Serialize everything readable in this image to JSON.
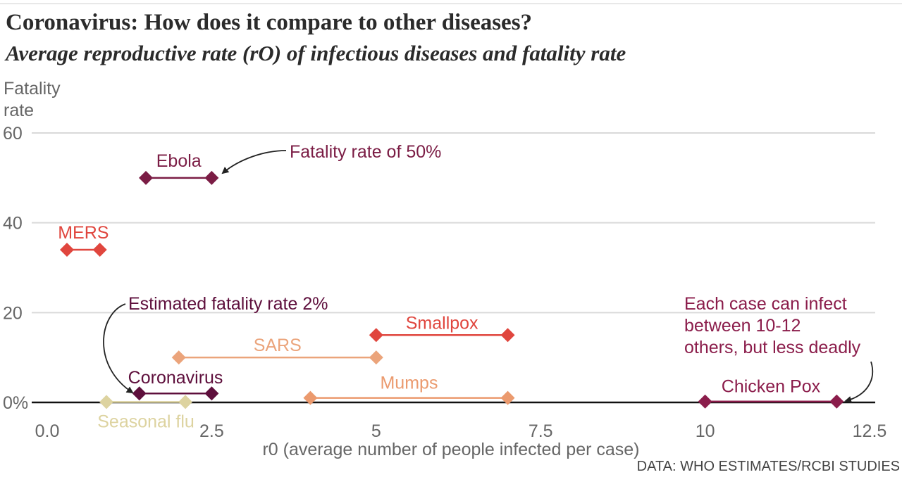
{
  "title": "Coronavirus: How does it compare to other diseases?",
  "subtitle": "Average reproductive rate (rO) of  infectious diseases and fatality rate",
  "source": "DATA: WHO ESTIMATES/RCBI STUDIES",
  "chart_data": {
    "type": "scatter",
    "xlabel": "r0 (average number of people infected per case)",
    "ylabel": "Fatality rate",
    "xlim": [
      0,
      12.5
    ],
    "ylim": [
      0,
      60
    ],
    "x_ticks": [
      "0.0",
      "2.5",
      "5",
      "7.5",
      "10",
      "12.5"
    ],
    "x_tick_values": [
      0,
      2.5,
      5,
      7.5,
      10,
      12.5
    ],
    "y_ticks": [
      "0%",
      "20",
      "40",
      "60"
    ],
    "y_tick_values": [
      0,
      20,
      40,
      60
    ],
    "grid": "horizontal",
    "diseases": [
      {
        "name": "Ebola",
        "x_range": [
          1.5,
          2.5
        ],
        "fatality": 50,
        "color": "#7b1d45"
      },
      {
        "name": "MERS",
        "x_range": [
          0.3,
          0.8
        ],
        "fatality": 34,
        "color": "#e0463e"
      },
      {
        "name": "Smallpox",
        "x_range": [
          5,
          7
        ],
        "fatality": 15,
        "color": "#e0463e"
      },
      {
        "name": "SARS",
        "x_range": [
          2,
          5
        ],
        "fatality": 10,
        "color": "#eba47b"
      },
      {
        "name": "Coronavirus",
        "x_range": [
          1.4,
          2.5
        ],
        "fatality": 2,
        "color": "#5e0f3c"
      },
      {
        "name": "Mumps",
        "x_range": [
          4,
          7
        ],
        "fatality": 1,
        "color": "#eb9a6e"
      },
      {
        "name": "Chicken Pox",
        "x_range": [
          10,
          12
        ],
        "fatality": 0.2,
        "color": "#8b1d4b"
      },
      {
        "name": "Seasonal flu",
        "x_range": [
          0.9,
          2.1
        ],
        "fatality": 0.1,
        "color": "#ddd3a0"
      }
    ],
    "annotations": [
      {
        "text": "Fatality rate of 50%",
        "color": "#7b1d45",
        "points_to": "Ebola"
      },
      {
        "text": "Estimated fatality rate 2%",
        "color": "#5e0f3c",
        "points_to": "Coronavirus"
      },
      {
        "lines": [
          "Each case can infect",
          "between 10-12",
          "others, but less deadly"
        ],
        "color": "#8b1d4b",
        "points_to": "Chicken Pox"
      }
    ]
  }
}
